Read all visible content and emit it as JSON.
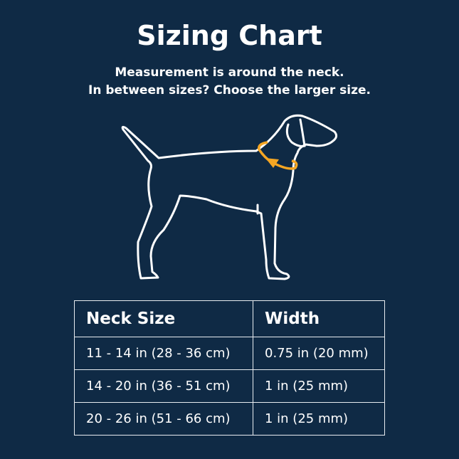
{
  "title": "Sizing Chart",
  "subtitle_lines": [
    "Measurement is around the neck.",
    "In between sizes? Choose the larger size."
  ],
  "illustration": {
    "outline_color": "#ffffff",
    "collar_arrow_color": "#f5a623"
  },
  "colors": {
    "background": "#0f2a45"
  },
  "table": {
    "headers": [
      "Neck Size",
      "Width"
    ],
    "rows": [
      [
        "11 - 14 in (28 - 36 cm)",
        "0.75 in (20 mm)"
      ],
      [
        "14 - 20 in (36 - 51 cm)",
        "1 in (25 mm)"
      ],
      [
        "20 - 26 in (51 - 66 cm)",
        "1 in (25 mm)"
      ]
    ]
  }
}
